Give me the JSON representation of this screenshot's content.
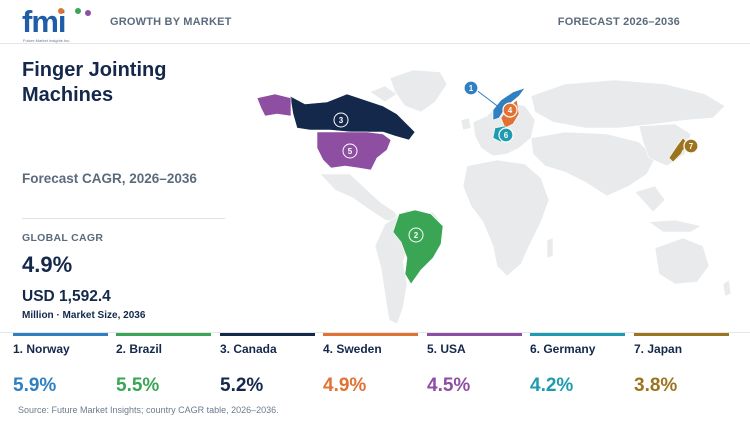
{
  "header": {
    "logo_text": "fmi",
    "logo_tagline": "Future Market Insights Inc.",
    "left_label": "GROWTH BY MARKET",
    "right_label": "FORECAST 2026–2036"
  },
  "title": "Finger Jointing Machines",
  "forecast_label": "Forecast CAGR, 2026–2036",
  "global": {
    "label": "GLOBAL CAGR",
    "value": "4.9%",
    "market_size": "USD 1,592.4",
    "market_size_sub": "Million · Market Size, 2036"
  },
  "countries": [
    {
      "rank": "1",
      "name": "1. Norway",
      "cagr": "5.9%",
      "color": "#2f7fc1"
    },
    {
      "rank": "2",
      "name": "2. Brazil",
      "cagr": "5.5%",
      "color": "#3aa655"
    },
    {
      "rank": "3",
      "name": "3. Canada",
      "cagr": "5.2%",
      "color": "#14284b"
    },
    {
      "rank": "4",
      "name": "4. Sweden",
      "cagr": "4.9%",
      "color": "#e07234"
    },
    {
      "rank": "5",
      "name": "5. USA",
      "cagr": "4.5%",
      "color": "#8e4fa3"
    },
    {
      "rank": "6",
      "name": "6. Germany",
      "cagr": "4.2%",
      "color": "#1e9bb0"
    },
    {
      "rank": "7",
      "name": "7. Japan",
      "cagr": "3.8%",
      "color": "#9c7420"
    }
  ],
  "source": "Source: Future Market Insights; country CAGR table, 2026–2036."
}
